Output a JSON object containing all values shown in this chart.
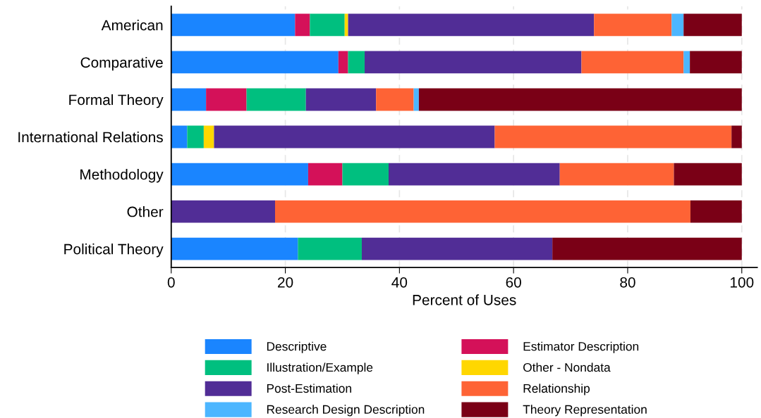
{
  "chart_data": {
    "type": "bar",
    "orientation": "horizontal",
    "stacked": true,
    "xlabel": "Percent of Uses",
    "categories": [
      "American",
      "Comparative",
      "Formal Theory",
      "International Relations",
      "Methodology",
      "Other",
      "Political Theory"
    ],
    "series": [
      {
        "name": "Descriptive",
        "color": "#1a85ff",
        "values": [
          21.7,
          29.3,
          6.1,
          2.8,
          24.0,
          0,
          22.2
        ]
      },
      {
        "name": "Estimator Description",
        "color": "#d41159",
        "values": [
          2.6,
          1.7,
          7.1,
          0,
          6.0,
          0,
          0
        ]
      },
      {
        "name": "Illustration/Example",
        "color": "#00bf7f",
        "values": [
          6.1,
          2.9,
          10.4,
          2.9,
          8.1,
          0,
          11.2
        ]
      },
      {
        "name": "Other - Nondata",
        "color": "#ffd700",
        "values": [
          0.6,
          0,
          0,
          1.8,
          0,
          0,
          0
        ]
      },
      {
        "name": "Post-Estimation",
        "color": "#512d96",
        "values": [
          43.1,
          38.0,
          12.3,
          49.2,
          30.0,
          18.2,
          33.4
        ]
      },
      {
        "name": "Relationship",
        "color": "#fe6335",
        "values": [
          13.6,
          17.9,
          6.6,
          41.5,
          20.0,
          72.8,
          0
        ]
      },
      {
        "name": "Research Design Description",
        "color": "#4cb6ff",
        "values": [
          2.1,
          1.1,
          0.9,
          0,
          0,
          0,
          0
        ]
      },
      {
        "name": "Theory Representation",
        "color": "#7a0016",
        "values": [
          10.2,
          9.1,
          56.6,
          1.8,
          11.9,
          9.0,
          33.2
        ]
      }
    ],
    "xlim": [
      0,
      102.7
    ],
    "xticks": [
      0,
      20,
      40,
      60,
      80,
      100
    ],
    "grid": "x",
    "legend": "bottom"
  }
}
